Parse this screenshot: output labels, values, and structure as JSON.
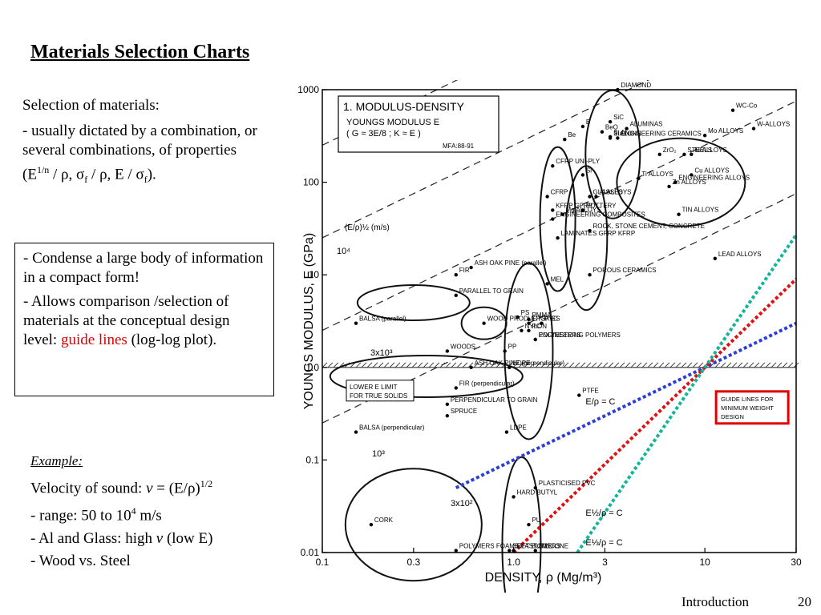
{
  "slide": {
    "title": "Materials Selection Charts",
    "intro_lead": "Selection of materials:",
    "intro_body_prefix": "- usually dictated by a combination, or several combinations, of properties (E",
    "intro_exp": "1/n",
    "intro_p1": " / ρ, σ",
    "intro_sub": "f",
    "intro_p2": " / ρ, E / σ",
    "intro_sub2": "f",
    "intro_end": ").",
    "box_p1": "- Condense a large body of information in a compact form!",
    "box_p2_prefix": "- Allows comparison /selection of materials at the conceptual design level: ",
    "box_p2_highlight": "guide lines",
    "box_p2_suffix": " (log-log plot).",
    "example_label": "Example:",
    "example_l1_prefix": "Velocity of sound: ",
    "example_l1_var": "v",
    "example_l1_mid": " = (E/ρ)",
    "example_l1_exp": "1/2",
    "example_l2_prefix": "- range: 50 to 10",
    "example_l2_exp": "4",
    "example_l2_suffix": " m/s",
    "example_l3_prefix": "- Al and Glass: high ",
    "example_l3_var": "v",
    "example_l3_suffix": " (low E)",
    "example_l4": "- Wood vs. Steel",
    "footer_left": "Introduction",
    "footer_page": "20",
    "highlight_color": "#e00000"
  },
  "chart_data": {
    "type": "scatter",
    "title": "1. MODULUS-DENSITY",
    "subtitle": "YOUNGS MODULUS E",
    "subtitle2": "( G ≈ 3E/8 ;  K ≈ E )",
    "ref": "MFA:88-91",
    "xlabel": "DENSITY, ρ (Mg/m³)",
    "ylabel": "YOUNGS MODULUS, E (GPa)",
    "xscale": "log",
    "yscale": "log",
    "xlim": [
      0.1,
      30
    ],
    "ylim": [
      0.01,
      1000
    ],
    "x_ticks": [
      0.1,
      0.3,
      1.0,
      3,
      10,
      30
    ],
    "x_tick_labels": [
      "0.1",
      "0.3",
      "1.0",
      "3",
      "10",
      "30"
    ],
    "y_ticks": [
      0.01,
      0.1,
      1.0,
      10,
      100,
      1000
    ],
    "y_tick_labels": [
      "0.01",
      "0.1",
      "1.0",
      "10",
      "100",
      "1000"
    ],
    "lower_limit_label": "LOWER E LIMIT FOR TRUE SOLIDS",
    "guide_box_label": "GUIDE LINES FOR MINIMUM WEIGHT DESIGN",
    "guide_box_color": "#e00000",
    "guide_velocity_label": "(E/ρ)½ (m/s)",
    "guide_velocity_values": [
      "10⁴",
      "3x10³",
      "10³",
      "3x10²"
    ],
    "guide_point": {
      "x": 10,
      "y": 1.0
    },
    "guide_lines": [
      {
        "name": "E/ρ = C",
        "slope": 1,
        "color": "#2b3fd6"
      },
      {
        "name": "E½/ρ = C",
        "slope": 2,
        "color": "#e01010"
      },
      {
        "name": "E⅓/ρ = C",
        "slope": 3,
        "color": "#12b59a"
      }
    ],
    "materials": [
      {
        "label": "DIAMOND",
        "x": 3.5,
        "y": 1000
      },
      {
        "label": "SiC",
        "x": 3.2,
        "y": 450
      },
      {
        "label": "Si₃N₄",
        "x": 3.2,
        "y": 310
      },
      {
        "label": "ALUMINAS",
        "x": 3.9,
        "y": 380
      },
      {
        "label": "B",
        "x": 2.3,
        "y": 400
      },
      {
        "label": "Be",
        "x": 1.85,
        "y": 290
      },
      {
        "label": "SIALONS",
        "x": 3.2,
        "y": 300
      },
      {
        "label": "ZrO₂",
        "x": 5.8,
        "y": 200
      },
      {
        "label": "BeO",
        "x": 2.9,
        "y": 350
      },
      {
        "label": "Si",
        "x": 2.3,
        "y": 120
      },
      {
        "label": "GLASSES",
        "x": 2.5,
        "y": 70
      },
      {
        "label": "POTTERY",
        "x": 2.3,
        "y": 50
      },
      {
        "label": "WC-Co",
        "x": 14,
        "y": 600
      },
      {
        "label": "W-ALLOYS",
        "x": 18,
        "y": 380
      },
      {
        "label": "Mo ALLOYS",
        "x": 10,
        "y": 320
      },
      {
        "label": "Ni ALLOYS",
        "x": 8.5,
        "y": 200
      },
      {
        "label": "STEELS",
        "x": 7.8,
        "y": 200
      },
      {
        "label": "Cu ALLOYS",
        "x": 8.5,
        "y": 120
      },
      {
        "label": "Ti ALLOYS",
        "x": 4.5,
        "y": 110
      },
      {
        "label": "Zn ALLOYS",
        "x": 6.5,
        "y": 90
      },
      {
        "label": "Al ALLOYS",
        "x": 2.7,
        "y": 70
      },
      {
        "label": "TIN ALLOYS",
        "x": 7.3,
        "y": 45
      },
      {
        "label": "ROCK, STONE CEMENT, CONCRETE",
        "x": 2.5,
        "y": 30
      },
      {
        "label": "LEAD ALLOYS",
        "x": 11.3,
        "y": 15
      },
      {
        "label": "CFRP UNI-PLY",
        "x": 1.6,
        "y": 150
      },
      {
        "label": "KFRP GFRP",
        "x": 1.6,
        "y": 50
      },
      {
        "label": "CFRP",
        "x": 1.5,
        "y": 70
      },
      {
        "label": "LAMINATES GFRP KFRP",
        "x": 1.7,
        "y": 25
      },
      {
        "label": "Mg ALLOYS",
        "x": 1.8,
        "y": 45
      },
      {
        "label": "POROUS CERAMICS",
        "x": 2.5,
        "y": 10
      },
      {
        "label": "ENGINEERING ALLOYS",
        "x": 7,
        "y": 100
      },
      {
        "label": "ENGINEERING CERAMICS",
        "x": 3.5,
        "y": 300
      },
      {
        "label": "ENGINEERING COMPOSITES",
        "x": 1.6,
        "y": 40
      },
      {
        "label": "ASH OAK PINE (parallel)",
        "x": 0.6,
        "y": 12
      },
      {
        "label": "FIR",
        "x": 0.5,
        "y": 10
      },
      {
        "label": "BALSA (parallel)",
        "x": 0.15,
        "y": 3
      },
      {
        "label": "PARALLEL TO GRAIN",
        "x": 0.5,
        "y": 6
      },
      {
        "label": "WOOD PRODUCTS",
        "x": 0.7,
        "y": 3
      },
      {
        "label": "WOODS",
        "x": 0.45,
        "y": 1.5
      },
      {
        "label": "ASH OAK PINE (perpendicular)",
        "x": 0.6,
        "y": 1
      },
      {
        "label": "FIR (perpendicular)",
        "x": 0.5,
        "y": 0.6
      },
      {
        "label": "PERPENDICULAR TO GRAIN",
        "x": 0.45,
        "y": 0.4
      },
      {
        "label": "SPRUCE",
        "x": 0.45,
        "y": 0.3
      },
      {
        "label": "BALSA (perpendicular)",
        "x": 0.15,
        "y": 0.2
      },
      {
        "label": "MEL",
        "x": 1.5,
        "y": 8
      },
      {
        "label": "PC",
        "x": 1.2,
        "y": 2.5
      },
      {
        "label": "EPOXIES",
        "x": 1.2,
        "y": 3
      },
      {
        "label": "PMMA",
        "x": 1.2,
        "y": 3.3
      },
      {
        "label": "PS",
        "x": 1.05,
        "y": 3.5
      },
      {
        "label": "PVC",
        "x": 1.4,
        "y": 3
      },
      {
        "label": "NYLON",
        "x": 1.1,
        "y": 2.5
      },
      {
        "label": "POLYESTERS",
        "x": 1.3,
        "y": 2
      },
      {
        "label": "PP",
        "x": 0.9,
        "y": 1.5
      },
      {
        "label": "HDPE",
        "x": 0.95,
        "y": 1
      },
      {
        "label": "PTFE",
        "x": 2.2,
        "y": 0.5
      },
      {
        "label": "LDPE",
        "x": 0.92,
        "y": 0.2
      },
      {
        "label": "PLASTICISED PVC",
        "x": 1.3,
        "y": 0.05
      },
      {
        "label": "ENGINEERING POLYMERS",
        "x": 1.3,
        "y": 2
      },
      {
        "label": "ELASTOMERS",
        "x": 1.0,
        "y": 0.01
      },
      {
        "label": "HARD BUTYL",
        "x": 1.0,
        "y": 0.04
      },
      {
        "label": "PU",
        "x": 1.2,
        "y": 0.02
      },
      {
        "label": "SILICONE",
        "x": 1.3,
        "y": 0.01
      },
      {
        "label": "SOFT BUTYL",
        "x": 0.95,
        "y": 0.001
      },
      {
        "label": "CORK",
        "x": 0.18,
        "y": 0.02
      },
      {
        "label": "POLYMERS FOAMS",
        "x": 0.5,
        "y": 0.01
      }
    ]
  }
}
